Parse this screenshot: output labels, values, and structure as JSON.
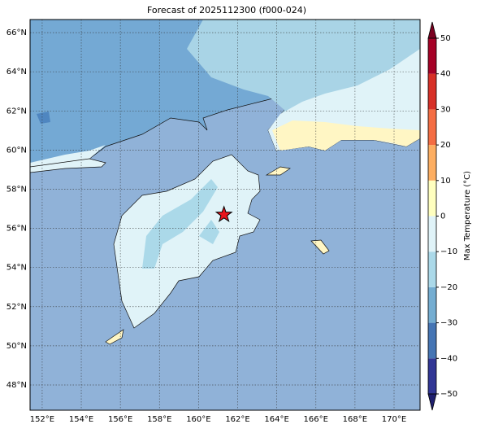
{
  "chart_data": {
    "type": "map",
    "title": "Forecast of 2025112300 (f000-024)",
    "xlim": [
      151.38,
      171.33
    ],
    "ylim": [
      46.71,
      66.67
    ],
    "xticks": [
      {
        "value": 152,
        "label": "152°E"
      },
      {
        "value": 154,
        "label": "154°E"
      },
      {
        "value": 156,
        "label": "156°E"
      },
      {
        "value": 158,
        "label": "158°E"
      },
      {
        "value": 160,
        "label": "160°E"
      },
      {
        "value": 162,
        "label": "162°E"
      },
      {
        "value": 164,
        "label": "164°E"
      },
      {
        "value": 166,
        "label": "166°E"
      },
      {
        "value": 168,
        "label": "168°E"
      },
      {
        "value": 170,
        "label": "170°E"
      }
    ],
    "yticks": [
      {
        "value": 48,
        "label": "48°N"
      },
      {
        "value": 50,
        "label": "50°N"
      },
      {
        "value": 52,
        "label": "52°N"
      },
      {
        "value": 54,
        "label": "54°N"
      },
      {
        "value": 56,
        "label": "56°N"
      },
      {
        "value": 58,
        "label": "58°N"
      },
      {
        "value": 60,
        "label": "60°N"
      },
      {
        "value": 62,
        "label": "62°N"
      },
      {
        "value": 64,
        "label": "64°N"
      },
      {
        "value": 66,
        "label": "66°N"
      }
    ],
    "grid": true,
    "marker": {
      "lon": 161.3,
      "lat": 56.7,
      "color": "#e8141b"
    },
    "colorbar": {
      "label": "Max Temperature (°C)",
      "lim": [
        -50,
        50
      ],
      "ticks": [
        {
          "value": -50,
          "label": "−50"
        },
        {
          "value": -40,
          "label": "−40"
        },
        {
          "value": -30,
          "label": "−30"
        },
        {
          "value": -20,
          "label": "−20"
        },
        {
          "value": -10,
          "label": "−10"
        },
        0,
        10,
        20,
        30,
        40,
        50
      ],
      "colors": [
        "#313695",
        "#4575b4",
        "#74add1",
        "#abd9e9",
        "#e0f3f8",
        "#ffffbf",
        "#fdae61",
        "#f46d43",
        "#d73027",
        "#a50026"
      ],
      "under_color": "#1f1f6e",
      "over_color": "#7a0020"
    }
  }
}
